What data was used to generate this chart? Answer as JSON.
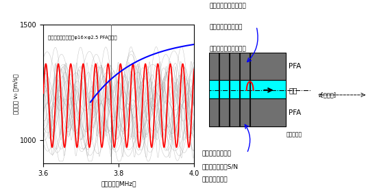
{
  "xlabel": "周波数ｆ（MHz）",
  "ylabel": "伝携速度 v₀ （m/s）",
  "xmin": 3.6,
  "xmax": 4.0,
  "ymin": 900,
  "ymax": 1500,
  "annotation_label": "内部に水を満たしたφ16×φ2.5 PFAパイプ",
  "vertical_line_x": 3.78,
  "note_top_line1": "変位を計算したら液体",
  "note_top_line2": "を伝搬する縦波が中",
  "note_top_line3": "心のモードであった。",
  "note_bot_line1": "他のモードから弧",
  "note_bot_line2": "立しているためS/N",
  "note_bot_line3": "の点でも有利。",
  "pipe_label_pfa_top": "PFA",
  "pipe_label_liquid": "液体",
  "pipe_label_pfa_bot": "PFA",
  "pipe_label_cross": "パイプ断面",
  "z_axis_label": "z[中心軸]",
  "cyan_color": "#00ffff",
  "red_line_color": "#ff0000",
  "gray_line_color": "#999999",
  "blue_curve_color": "#0000ff",
  "background_color": "#ffffff",
  "pipe_dark_gray": "#707070"
}
